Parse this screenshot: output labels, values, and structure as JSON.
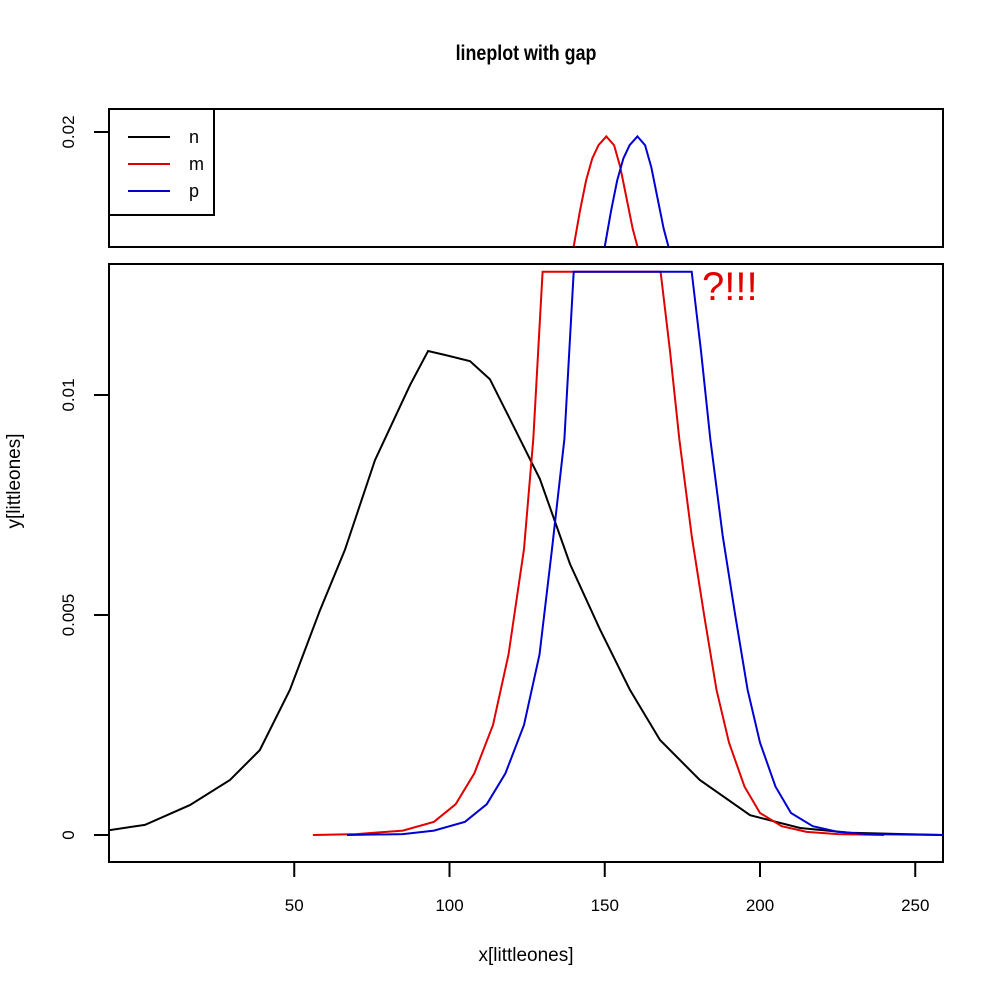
{
  "chart_data": {
    "type": "line",
    "title": "lineplot with gap",
    "xlabel": "x[littleones]",
    "ylabel": "y[littleones]",
    "xlim": [
      -9.7,
      259
    ],
    "ylim_lower": [
      -0.00065,
      0.013
    ],
    "ylim_upper": [
      0.0174,
      0.0205
    ],
    "gap": {
      "from": 0.013,
      "to": 0.0174
    },
    "xticks": [
      50,
      100,
      150,
      200,
      250
    ],
    "yticks_lower": [
      0,
      0.005,
      0.01
    ],
    "yticks_upper": [
      0.02
    ],
    "ytick_labels_lower": [
      "0",
      "0.005",
      "0.01"
    ],
    "ytick_labels_upper": [
      "0.02"
    ],
    "annotation": {
      "text": "?!!!",
      "color": "#e00000"
    },
    "legend": {
      "position": "topleft",
      "entries": [
        {
          "label": "n",
          "color": "#000000"
        },
        {
          "label": "m",
          "color": "#e00000"
        },
        {
          "label": "p",
          "color": "#0000d0"
        }
      ]
    },
    "series": [
      {
        "name": "n",
        "color": "#000000",
        "x": [
          -9.7,
          1.9,
          16.4,
          29.3,
          38.9,
          48.6,
          58.3,
          66.3,
          76.0,
          87.3,
          93.1,
          98.6,
          106.6,
          113.0,
          119.5,
          129.1,
          138.8,
          148.4,
          158.1,
          167.8,
          180.6,
          196.8,
          212.9,
          229.0,
          259
        ],
        "y": [
          0.00011,
          0.00023,
          0.00068,
          0.00125,
          0.00193,
          0.0033,
          0.00511,
          0.00648,
          0.00852,
          0.01023,
          0.011,
          0.01091,
          0.01077,
          0.01036,
          0.00945,
          0.00809,
          0.00616,
          0.00468,
          0.0033,
          0.00216,
          0.00125,
          0.00045,
          0.00016,
          5e-05,
          0.0
        ]
      },
      {
        "name": "m",
        "color": "#e00000",
        "x": [
          56,
          70,
          85,
          95,
          102,
          108,
          114,
          119,
          124,
          127,
          130,
          150,
          168,
          171,
          174,
          178,
          182,
          186,
          190,
          195,
          200,
          207,
          215,
          225,
          240
        ],
        "y": [
          0.0,
          2e-05,
          0.0001,
          0.0003,
          0.0007,
          0.0014,
          0.0025,
          0.0041,
          0.0065,
          0.009,
          0.0128,
          0.0128,
          0.0128,
          0.011,
          0.009,
          0.0068,
          0.005,
          0.0033,
          0.0021,
          0.0011,
          0.0005,
          0.0002,
          7e-05,
          2e-05,
          0.0
        ]
      },
      {
        "name": "p",
        "color": "#0000d0",
        "x": [
          67,
          85,
          95,
          105,
          112,
          118,
          124,
          129,
          133,
          137,
          140,
          158,
          178,
          181,
          184,
          188,
          192,
          196,
          200,
          205,
          210,
          217,
          225,
          235,
          259
        ],
        "y": [
          0.0,
          2e-05,
          0.0001,
          0.0003,
          0.0007,
          0.0014,
          0.0025,
          0.0041,
          0.0065,
          0.009,
          0.0128,
          0.0128,
          0.0128,
          0.011,
          0.009,
          0.0068,
          0.005,
          0.0033,
          0.0021,
          0.0011,
          0.0005,
          0.0002,
          7e-05,
          2e-05,
          0.0
        ]
      },
      {
        "name": "m_upper",
        "color": "#e00000",
        "x": [
          140,
          142,
          144,
          146,
          148,
          150.5,
          153,
          155,
          157,
          159,
          160.5
        ],
        "y": [
          0.0174,
          0.0182,
          0.0189,
          0.0194,
          0.0197,
          0.0199,
          0.0197,
          0.0192,
          0.0185,
          0.0178,
          0.0174
        ]
      },
      {
        "name": "p_upper",
        "color": "#0000d0",
        "x": [
          150,
          152,
          154,
          156,
          158,
          160.5,
          163,
          165,
          167,
          169,
          170.5
        ],
        "y": [
          0.0174,
          0.0182,
          0.0189,
          0.0194,
          0.0197,
          0.0199,
          0.0197,
          0.0192,
          0.0185,
          0.0178,
          0.0174
        ]
      }
    ]
  }
}
